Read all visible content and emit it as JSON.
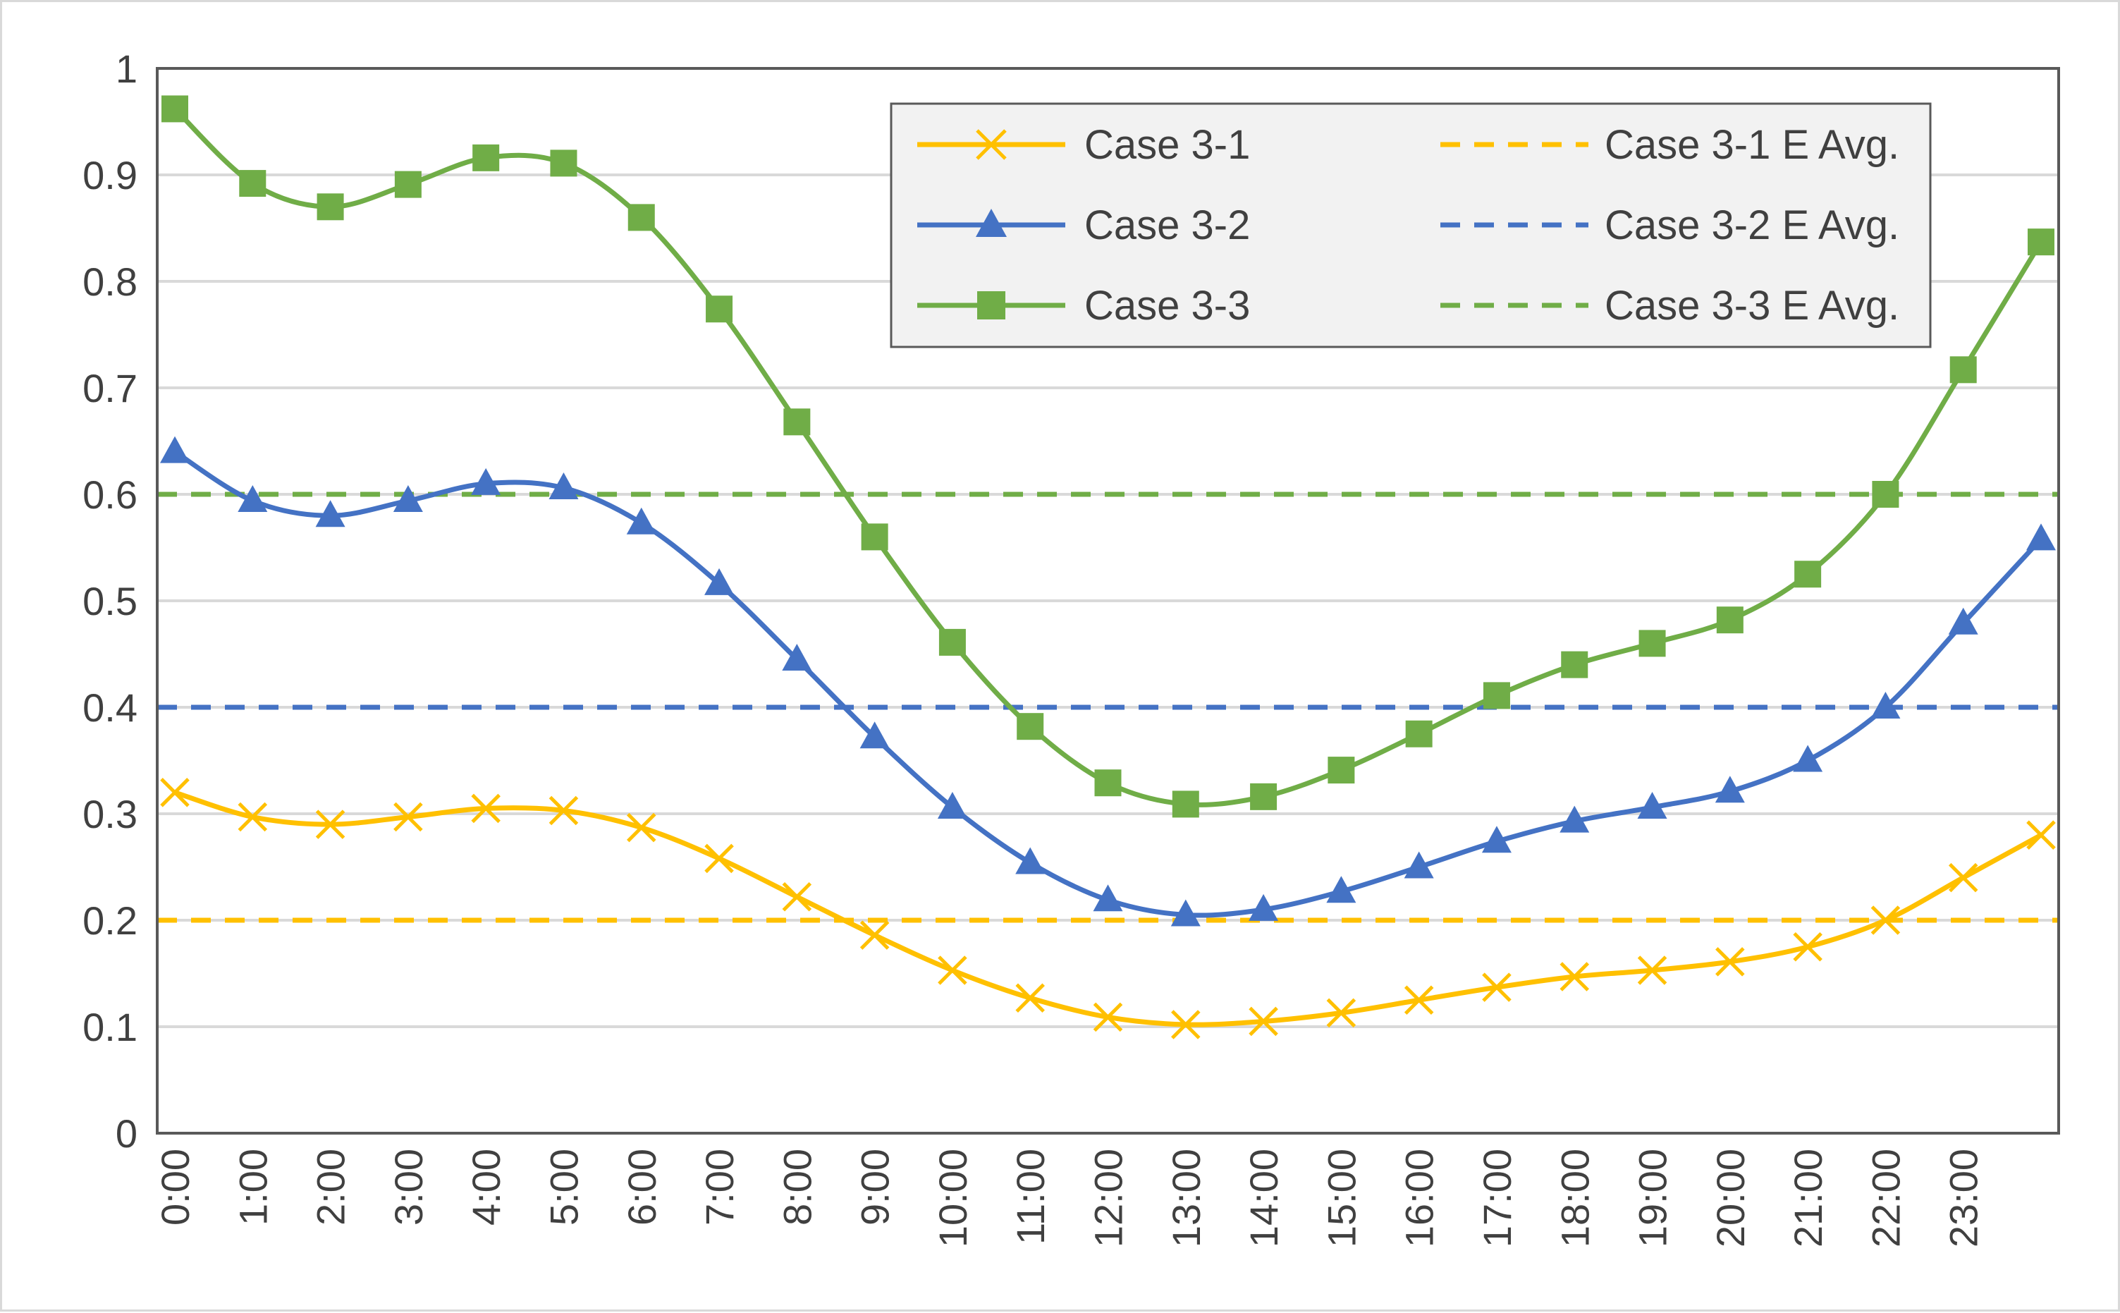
{
  "chart_data": {
    "type": "line",
    "title": "",
    "xlabel": "",
    "ylabel": "",
    "categories": [
      "0:00",
      "1:00",
      "2:00",
      "3:00",
      "4:00",
      "5:00",
      "6:00",
      "7:00",
      "8:00",
      "9:00",
      "10:00",
      "11:00",
      "12:00",
      "13:00",
      "14:00",
      "15:00",
      "16:00",
      "17:00",
      "18:00",
      "19:00",
      "20:00",
      "21:00",
      "22:00",
      "23:00",
      ""
    ],
    "x_tick_labels": [
      "0:00",
      "1:00",
      "2:00",
      "3:00",
      "4:00",
      "5:00",
      "6:00",
      "7:00",
      "8:00",
      "9:00",
      "10:00",
      "11:00",
      "12:00",
      "13:00",
      "14:00",
      "15:00",
      "16:00",
      "17:00",
      "18:00",
      "19:00",
      "20:00",
      "21:00",
      "22:00",
      "23:00"
    ],
    "ylim": [
      0,
      1
    ],
    "y_tick_labels": [
      "0",
      "0.1",
      "0.2",
      "0.3",
      "0.4",
      "0.5",
      "0.6",
      "0.7",
      "0.8",
      "0.9",
      "1"
    ],
    "y_ticks": [
      0,
      0.1,
      0.2,
      0.3,
      0.4,
      0.5,
      0.6,
      0.7,
      0.8,
      0.9,
      1
    ],
    "grid": "horizontal",
    "legend_position": "top-right",
    "series": [
      {
        "name": "Case 3-1",
        "color": "#FFC000",
        "marker": "x",
        "style": "solid",
        "values": [
          0.32,
          0.297,
          0.29,
          0.297,
          0.305,
          0.303,
          0.287,
          0.258,
          0.222,
          0.186,
          0.153,
          0.127,
          0.109,
          0.102,
          0.105,
          0.113,
          0.125,
          0.137,
          0.147,
          0.153,
          0.161,
          0.175,
          0.2,
          0.24,
          0.28
        ]
      },
      {
        "name": "Case 3-2",
        "color": "#4472C4",
        "marker": "triangle",
        "style": "solid",
        "values": [
          0.64,
          0.594,
          0.58,
          0.594,
          0.61,
          0.606,
          0.573,
          0.516,
          0.445,
          0.372,
          0.306,
          0.254,
          0.219,
          0.205,
          0.21,
          0.227,
          0.25,
          0.274,
          0.293,
          0.306,
          0.321,
          0.35,
          0.4,
          0.479,
          0.558
        ]
      },
      {
        "name": "Case 3-3",
        "color": "#70AD47",
        "marker": "square",
        "style": "solid",
        "values": [
          0.962,
          0.892,
          0.87,
          0.891,
          0.916,
          0.911,
          0.86,
          0.774,
          0.668,
          0.56,
          0.461,
          0.382,
          0.329,
          0.309,
          0.316,
          0.341,
          0.375,
          0.411,
          0.44,
          0.46,
          0.482,
          0.525,
          0.6,
          0.717,
          0.837
        ]
      },
      {
        "name": "Case 3-1 E Avg.",
        "color": "#FFC000",
        "style": "dashed",
        "value": 0.2
      },
      {
        "name": "Case 3-2 E Avg.",
        "color": "#4472C4",
        "style": "dashed",
        "value": 0.4
      },
      {
        "name": "Case 3-3 E Avg.",
        "color": "#70AD47",
        "style": "dashed",
        "value": 0.6
      }
    ]
  }
}
